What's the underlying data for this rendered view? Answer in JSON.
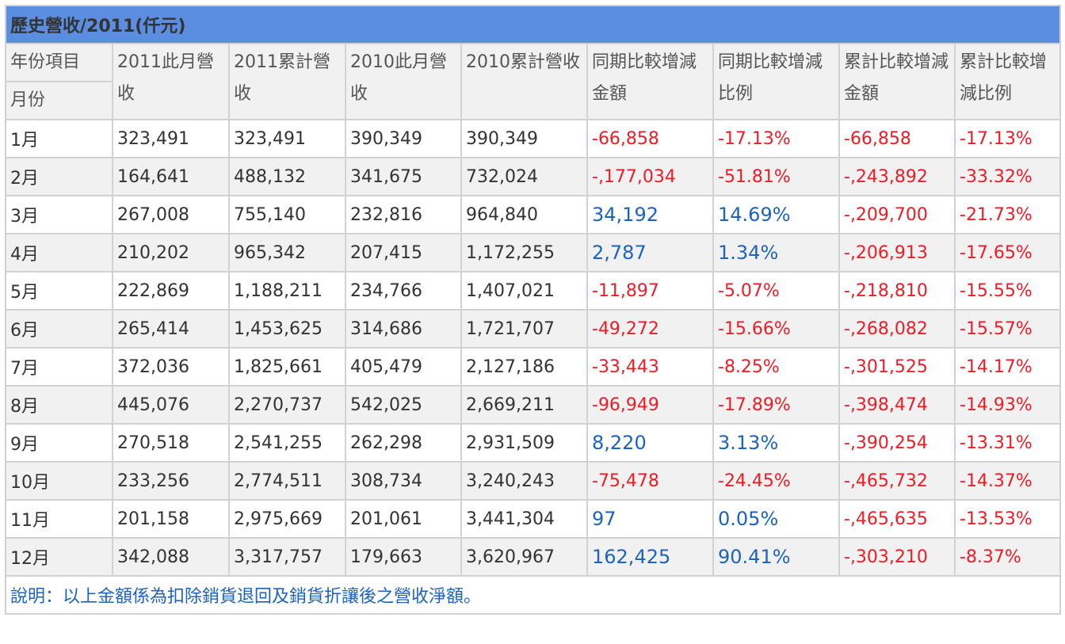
{
  "title": "歷史營收/2011(仟元)",
  "header": {
    "corner_top": "年份項目",
    "corner_bottom": "月份",
    "columns": [
      "2011此月營收",
      "2011累計營收",
      "2010此月營收",
      "2010累計營收",
      "同期比較增減金額",
      "同期比較增減比例",
      "累計比較增減金額",
      "累計比較增減比例"
    ]
  },
  "rows": [
    {
      "month": "1月",
      "m2011": "323,491",
      "c2011": "323,491",
      "m2010": "390,349",
      "c2010": "390,349",
      "diff": "-66,858",
      "diff_pct": "-17.13%",
      "cdiff": "-66,858",
      "cdiff_pct": "-17.13%"
    },
    {
      "month": "2月",
      "m2011": "164,641",
      "c2011": "488,132",
      "m2010": "341,675",
      "c2010": "732,024",
      "diff": "-,177,034",
      "diff_pct": "-51.81%",
      "cdiff": "-,243,892",
      "cdiff_pct": "-33.32%"
    },
    {
      "month": "3月",
      "m2011": "267,008",
      "c2011": "755,140",
      "m2010": "232,816",
      "c2010": "964,840",
      "diff": "34,192",
      "diff_pct": "14.69%",
      "cdiff": "-,209,700",
      "cdiff_pct": "-21.73%"
    },
    {
      "month": "4月",
      "m2011": "210,202",
      "c2011": "965,342",
      "m2010": "207,415",
      "c2010": "1,172,255",
      "diff": "2,787",
      "diff_pct": "1.34%",
      "cdiff": "-,206,913",
      "cdiff_pct": "-17.65%"
    },
    {
      "month": "5月",
      "m2011": "222,869",
      "c2011": "1,188,211",
      "m2010": "234,766",
      "c2010": "1,407,021",
      "diff": "-11,897",
      "diff_pct": "-5.07%",
      "cdiff": "-,218,810",
      "cdiff_pct": "-15.55%"
    },
    {
      "month": "6月",
      "m2011": "265,414",
      "c2011": "1,453,625",
      "m2010": "314,686",
      "c2010": "1,721,707",
      "diff": "-49,272",
      "diff_pct": "-15.66%",
      "cdiff": "-,268,082",
      "cdiff_pct": "-15.57%"
    },
    {
      "month": "7月",
      "m2011": "372,036",
      "c2011": "1,825,661",
      "m2010": "405,479",
      "c2010": "2,127,186",
      "diff": "-33,443",
      "diff_pct": "-8.25%",
      "cdiff": "-,301,525",
      "cdiff_pct": "-14.17%"
    },
    {
      "month": "8月",
      "m2011": "445,076",
      "c2011": "2,270,737",
      "m2010": "542,025",
      "c2010": "2,669,211",
      "diff": "-96,949",
      "diff_pct": "-17.89%",
      "cdiff": "-,398,474",
      "cdiff_pct": "-14.93%"
    },
    {
      "month": "9月",
      "m2011": "270,518",
      "c2011": "2,541,255",
      "m2010": "262,298",
      "c2010": "2,931,509",
      "diff": "8,220",
      "diff_pct": "3.13%",
      "cdiff": "-,390,254",
      "cdiff_pct": "-13.31%"
    },
    {
      "month": "10月",
      "m2011": "233,256",
      "c2011": "2,774,511",
      "m2010": "308,734",
      "c2010": "3,240,243",
      "diff": "-75,478",
      "diff_pct": "-24.45%",
      "cdiff": "-,465,732",
      "cdiff_pct": "-14.37%"
    },
    {
      "month": "11月",
      "m2011": "201,158",
      "c2011": "2,975,669",
      "m2010": "201,061",
      "c2010": "3,441,304",
      "diff": "97",
      "diff_pct": "0.05%",
      "cdiff": "-,465,635",
      "cdiff_pct": "-13.53%"
    },
    {
      "month": "12月",
      "m2011": "342,088",
      "c2011": "3,317,757",
      "m2010": "179,663",
      "c2010": "3,620,967",
      "diff": "162,425",
      "diff_pct": "90.41%",
      "cdiff": "-,303,210",
      "cdiff_pct": "-8.37%"
    }
  ],
  "note": "說明：以上金額係為扣除銷貨退回及銷貨折讓後之營收淨額。",
  "colors": {
    "header_bar": "#5b8ee0",
    "negative": "#ee1c25",
    "positive": "#1a63c4",
    "stripe": "#f1f1f1",
    "border": "#d2d2d2"
  }
}
